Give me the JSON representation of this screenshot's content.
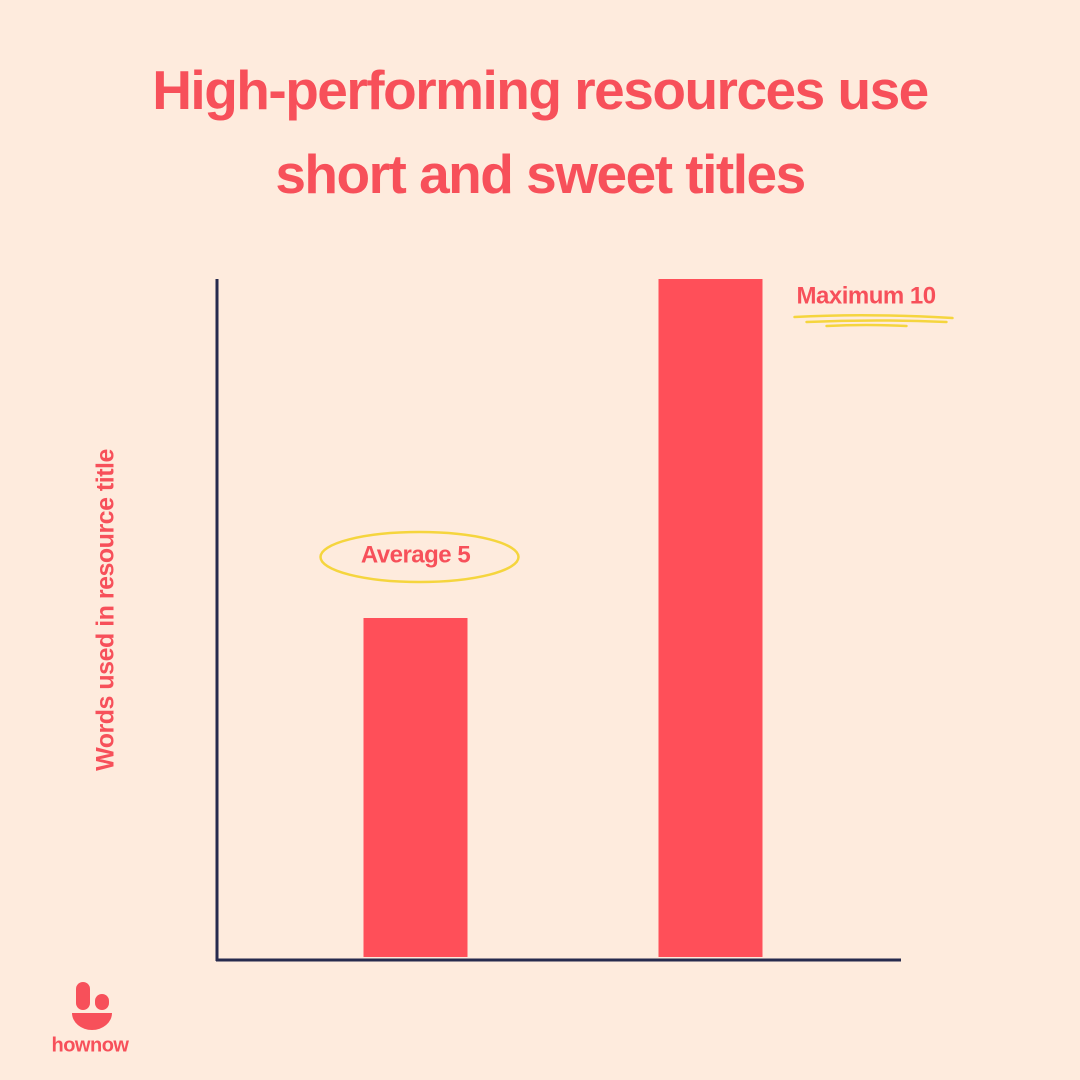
{
  "chart_data": {
    "type": "bar",
    "title": "High-performing resources use short and sweet titles",
    "y_label": "Words used in resource title",
    "categories": [
      null,
      null
    ],
    "values": [
      5,
      10
    ],
    "value_labels": [
      "Average 5",
      "Maximum 10"
    ],
    "color": "#ff4f59",
    "ylim": [
      0,
      10
    ],
    "grid": false
  },
  "logo_text": "hownow"
}
